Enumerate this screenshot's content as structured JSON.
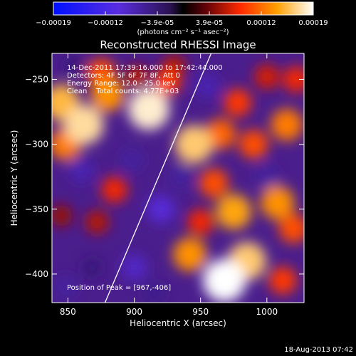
{
  "chart_data": {
    "type": "heatmap",
    "title": "Reconstructed RHESSI Image",
    "xlabel": "Heliocentric X (arcsec)",
    "ylabel": "Heliocentric Y (arcsec)",
    "xlim": [
      838,
      1028
    ],
    "ylim": [
      -422,
      -230
    ],
    "x_ticks": [
      850,
      900,
      950,
      1000
    ],
    "y_ticks": [
      -250,
      -300,
      -350,
      -400
    ],
    "colorbar": {
      "ticks": [
        "-0.00019",
        "-0.00012",
        "-3.9e-05",
        "3.9e-05",
        "0.00012",
        "0.00019"
      ],
      "unit_label": "(photons cm⁻² s⁻¹ asec⁻²)",
      "min": -0.00019,
      "max": 0.00019
    },
    "annotations": [
      "14-Dec-2011 17:39:16.000 to 17:42:44.000",
      "Detectors: 4F 5F 6F 7F 8F, Att 0",
      "Energy Range: 12.0 - 25.0 keV",
      "Clean    Total counts: 4.77E+03"
    ],
    "peak_label": "Position of Peak = [967,-406]",
    "limb_line": {
      "x": [
        878,
        958
      ],
      "y": [
        -422,
        -230
      ]
    },
    "blobs": [
      {
        "x": 845,
        "y": -268,
        "v": 0.00015
      },
      {
        "x": 862,
        "y": -285,
        "v": 0.00017
      },
      {
        "x": 848,
        "y": -300,
        "v": 0.00012
      },
      {
        "x": 880,
        "y": -262,
        "v": 0.00013
      },
      {
        "x": 875,
        "y": -245,
        "v": 0.0001
      },
      {
        "x": 911,
        "y": -273,
        "v": 0.00018
      },
      {
        "x": 925,
        "y": -252,
        "v": 9e-05
      },
      {
        "x": 902,
        "y": -248,
        "v": 6e-05
      },
      {
        "x": 898,
        "y": -312,
        "v": -6e-05
      },
      {
        "x": 930,
        "y": -240,
        "v": 6e-05
      },
      {
        "x": 945,
        "y": -300,
        "v": 0.00016
      },
      {
        "x": 965,
        "y": -292,
        "v": 0.00011
      },
      {
        "x": 978,
        "y": -268,
        "v": 9e-05
      },
      {
        "x": 990,
        "y": -300,
        "v": 0.0001
      },
      {
        "x": 1000,
        "y": -248,
        "v": 7e-05
      },
      {
        "x": 1015,
        "y": -285,
        "v": 0.00012
      },
      {
        "x": 1022,
        "y": -250,
        "v": 8e-05
      },
      {
        "x": 960,
        "y": -330,
        "v": 0.0001
      },
      {
        "x": 975,
        "y": -352,
        "v": 0.00014
      },
      {
        "x": 1008,
        "y": -345,
        "v": 0.00013
      },
      {
        "x": 1020,
        "y": -365,
        "v": 0.0001
      },
      {
        "x": 985,
        "y": -390,
        "v": 0.00016
      },
      {
        "x": 968,
        "y": -405,
        "v": 0.00019
      },
      {
        "x": 942,
        "y": -385,
        "v": 0.00013
      },
      {
        "x": 950,
        "y": -360,
        "v": 8e-05
      },
      {
        "x": 1012,
        "y": -405,
        "v": 9e-05
      },
      {
        "x": 885,
        "y": -335,
        "v": 8e-05
      },
      {
        "x": 872,
        "y": -360,
        "v": 6e-05
      },
      {
        "x": 845,
        "y": -355,
        "v": 5e-05
      },
      {
        "x": 868,
        "y": -395,
        "v": -4e-05
      },
      {
        "x": 848,
        "y": -410,
        "v": -6e-05
      },
      {
        "x": 900,
        "y": -395,
        "v": -8e-05
      },
      {
        "x": 920,
        "y": -350,
        "v": -9e-05
      },
      {
        "x": 935,
        "y": -325,
        "v": -6e-05
      },
      {
        "x": 1000,
        "y": -325,
        "v": -6e-05
      },
      {
        "x": 860,
        "y": -320,
        "v": -7e-05
      },
      {
        "x": 855,
        "y": -240,
        "v": -4e-05
      },
      {
        "x": 955,
        "y": -255,
        "v": -7e-05
      },
      {
        "x": 915,
        "y": -415,
        "v": -5e-05
      }
    ]
  },
  "footer": {
    "date": "18-Aug-2013 07:42"
  }
}
